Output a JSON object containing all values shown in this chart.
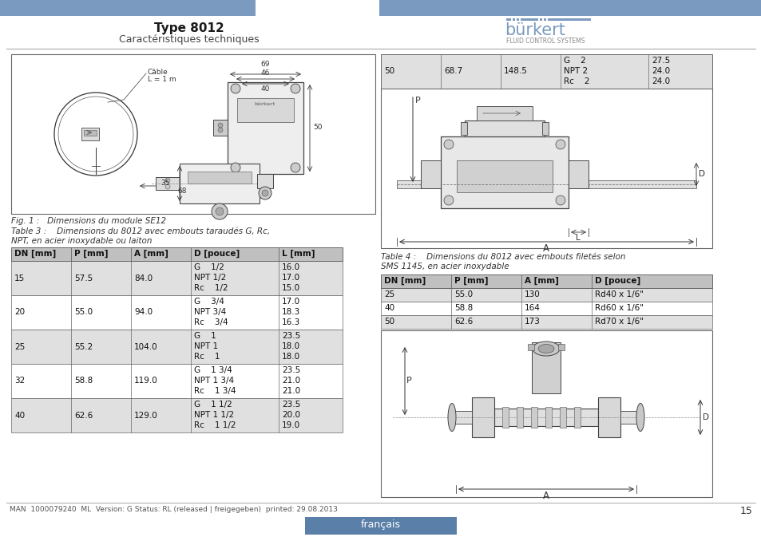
{
  "page_bg": "#ffffff",
  "header_bar_color": "#7a9bbf",
  "title_text": "Type 8012",
  "subtitle_text": "Caractéristiques techniques",
  "burkert_logo_text": "bürkert",
  "burkert_sub_text": "FLUID CONTROL SYSTEMS",
  "burkert_logo_color": "#7a9bbf",
  "fig1_caption": "Fig. 1 :   Dimensions du module SE12",
  "table3_title_line1": "Table 3 :    Dimensions du 8012 avec embouts taraudés G, Rc,",
  "table3_title_line2": "NPT, en acier inoxydable ou laiton",
  "table3_headers": [
    "DN [mm]",
    "P [mm]",
    "A [mm]",
    "D [pouce]",
    "L [mm]"
  ],
  "table3_rows": [
    [
      "15",
      "57.5",
      "84.0",
      "G    1/2\nNPT 1/2\nRc    1/2",
      "16.0\n17.0\n15.0"
    ],
    [
      "20",
      "55.0",
      "94.0",
      "G    3/4\nNPT 3/4\nRc    3/4",
      "17.0\n18.3\n16.3"
    ],
    [
      "25",
      "55.2",
      "104.0",
      "G    1\nNPT 1\nRc    1",
      "23.5\n18.0\n18.0"
    ],
    [
      "32",
      "58.8",
      "119.0",
      "G    1 3/4\nNPT 1 3/4\nRc    1 3/4",
      "23.5\n21.0\n21.0"
    ],
    [
      "40",
      "62.6",
      "129.0",
      "G    1 1/2\nNPT 1 1/2\nRc    1 1/2",
      "23.5\n20.0\n19.0"
    ]
  ],
  "right_top_row": [
    "50",
    "68.7",
    "148.5",
    "G    2\nNPT 2\nRc    2",
    "27.5\n24.0\n24.0"
  ],
  "table4_title_line1": "Table 4 :    Dimensions du 8012 avec embouts filetés selon",
  "table4_title_line2": "SMS 1145, en acier inoxydable",
  "table4_headers": [
    "DN [mm]",
    "P [mm]",
    "A [mm]",
    "D [pouce]"
  ],
  "table4_rows": [
    [
      "25",
      "55.0",
      "130",
      "Rd40 x 1/6\""
    ],
    [
      "40",
      "58.8",
      "164",
      "Rd60 x 1/6\""
    ],
    [
      "50",
      "62.6",
      "173",
      "Rd70 x 1/6\""
    ]
  ],
  "footer_text": "MAN  1000079240  ML  Version: G Status: RL (released | freigegeben)  printed: 29.08.2013",
  "footer_lang": "français",
  "footer_lang_bg": "#5a7fa8",
  "page_number": "15",
  "table_header_bg": "#c0c0c0",
  "table_row_bg_odd": "#e0e0e0",
  "table_row_bg_even": "#ffffff",
  "diagram_box_bg": "#ffffff",
  "diagram_box_border": "#666666"
}
